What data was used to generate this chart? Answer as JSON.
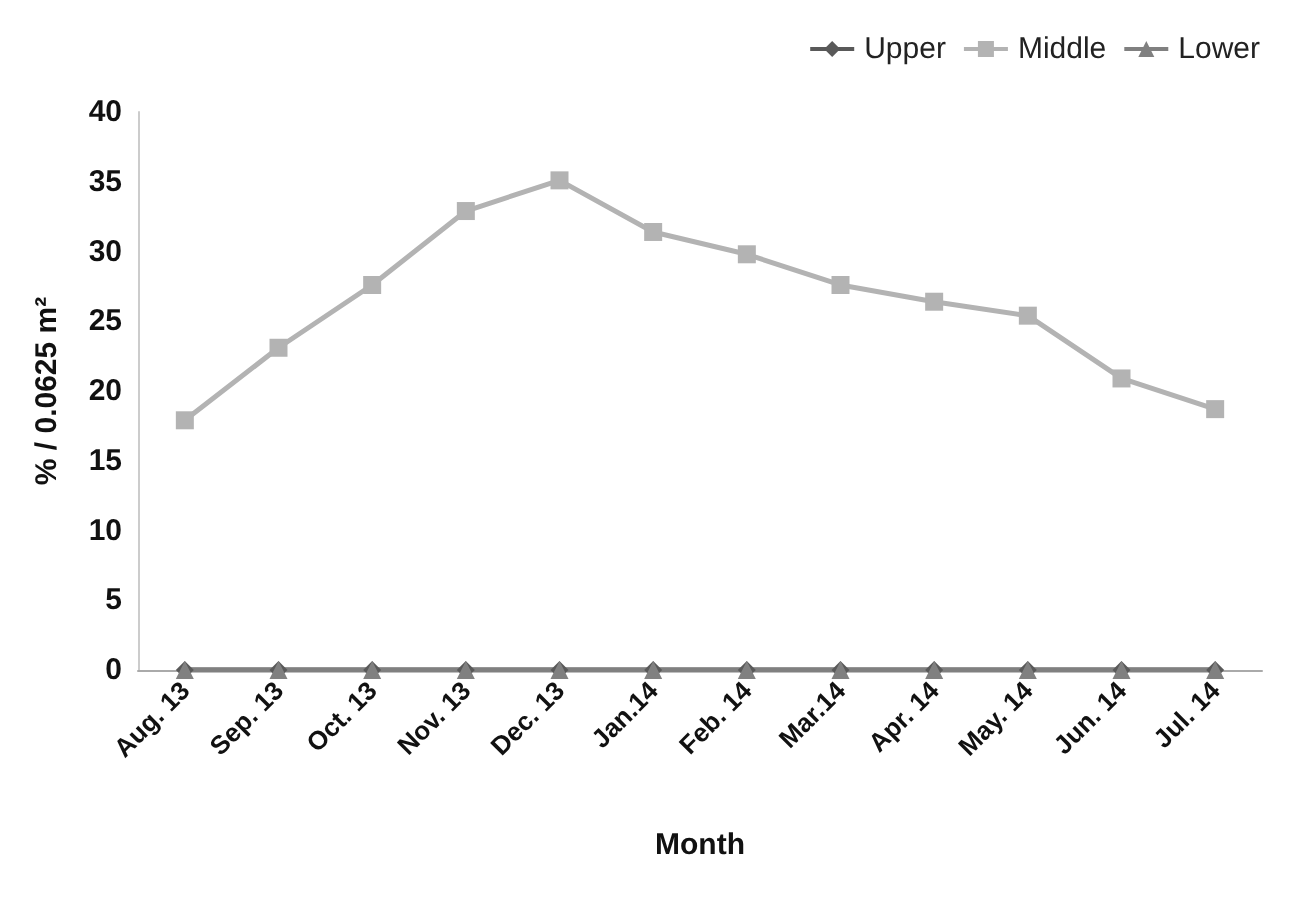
{
  "chart_data": {
    "type": "line",
    "xlabel": "Month",
    "ylabel": "% / 0.0625 m²",
    "categories": [
      "Aug. 13",
      "Sep. 13",
      "Oct. 13",
      "Nov. 13",
      "Dec. 13",
      "Jan.14",
      "Feb. 14",
      "Mar.14",
      "Apr. 14",
      "May. 14",
      "Jun. 14",
      "Jul. 14"
    ],
    "series": [
      {
        "name": "Upper",
        "color": "#595959",
        "marker": "diamond",
        "values": [
          0,
          0,
          0,
          0,
          0,
          0,
          0,
          0,
          0,
          0,
          0,
          0
        ]
      },
      {
        "name": "Middle",
        "color": "#b3b3b3",
        "marker": "square",
        "values": [
          17.9,
          23.1,
          27.6,
          32.9,
          35.1,
          31.4,
          29.8,
          27.6,
          26.4,
          25.4,
          20.9,
          18.7
        ]
      },
      {
        "name": "Lower",
        "color": "#808080",
        "marker": "triangle",
        "values": [
          0,
          0,
          0,
          0,
          0,
          0,
          0,
          0,
          0,
          0,
          0,
          0
        ]
      }
    ],
    "ylim": [
      0,
      40
    ],
    "yticks": [
      0,
      5,
      10,
      15,
      20,
      25,
      30,
      35,
      40
    ],
    "grid": false,
    "legend": "top right",
    "line_style": "solid"
  }
}
